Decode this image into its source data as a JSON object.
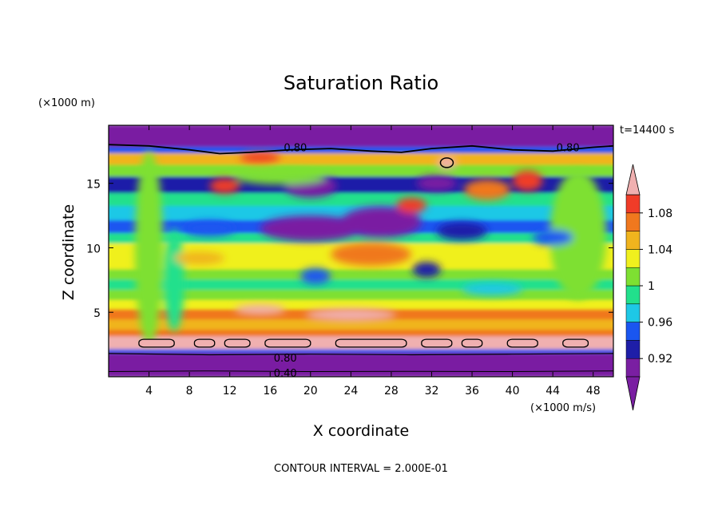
{
  "chart_data": {
    "type": "heatmap",
    "title": "Saturation Ratio",
    "xlabel": "X coordinate",
    "ylabel": "Z coordinate",
    "x_unit": "(×1000 m/s)",
    "y_unit": "(×1000 m)",
    "time_label": "t=14400 s",
    "footer": "CONTOUR INTERVAL = 2.000E-01",
    "xlim": [
      0,
      50
    ],
    "ylim": [
      0,
      19.5
    ],
    "x_ticks": [
      "4",
      "8",
      "12",
      "16",
      "20",
      "24",
      "28",
      "32",
      "36",
      "40",
      "44",
      "48"
    ],
    "y_ticks": [
      "5",
      "10",
      "15"
    ],
    "colorbar": {
      "levels": [
        0.9,
        0.92,
        0.94,
        0.96,
        0.98,
        1.0,
        1.02,
        1.04,
        1.06,
        1.08,
        1.1
      ],
      "labels": [
        "0.92",
        "0.96",
        "1",
        "1.04",
        "1.08"
      ],
      "colors": [
        "#7a1fa2",
        "#1e1ea8",
        "#1a56f0",
        "#1ec8e6",
        "#22e08c",
        "#7ee032",
        "#f0f01e",
        "#f0b41e",
        "#f0781e",
        "#f03c28"
      ],
      "under_color": "#7a1fa2",
      "over_color": "#f0b0b0"
    },
    "contour_labels": [
      {
        "text": "0.80",
        "x": 18.5,
        "y": 17.8
      },
      {
        "text": "0.80",
        "x": 45.5,
        "y": 17.8
      },
      {
        "text": "0.80",
        "x": 17.5,
        "y": 1.5
      },
      {
        "text": "0.40",
        "x": 17.5,
        "y": 0.3
      }
    ],
    "bands": [
      {
        "y0": 0.0,
        "y1": 1.6,
        "value": 0.6
      },
      {
        "y0": 1.6,
        "y1": 1.9,
        "value": 0.85
      },
      {
        "y0": 1.9,
        "y1": 2.2,
        "value": 0.95
      },
      {
        "y0": 2.2,
        "y1": 3.2,
        "value": 1.1
      },
      {
        "y0": 3.2,
        "y1": 3.7,
        "value": 1.07
      },
      {
        "y0": 3.7,
        "y1": 4.5,
        "value": 1.05
      },
      {
        "y0": 4.5,
        "y1": 5.3,
        "value": 1.07
      },
      {
        "y0": 5.3,
        "y1": 6.0,
        "value": 1.03
      },
      {
        "y0": 6.0,
        "y1": 6.8,
        "value": 1.01
      },
      {
        "y0": 6.8,
        "y1": 7.6,
        "value": 0.98
      },
      {
        "y0": 7.6,
        "y1": 8.4,
        "value": 1.01
      },
      {
        "y0": 8.4,
        "y1": 9.2,
        "value": 1.03
      },
      {
        "y0": 9.2,
        "y1": 10.4,
        "value": 1.02
      },
      {
        "y0": 10.4,
        "y1": 11.2,
        "value": 0.99
      },
      {
        "y0": 11.2,
        "y1": 12.2,
        "value": 0.95
      },
      {
        "y0": 12.2,
        "y1": 13.3,
        "value": 0.97
      },
      {
        "y0": 13.3,
        "y1": 14.3,
        "value": 0.99
      },
      {
        "y0": 14.3,
        "y1": 15.6,
        "value": 0.93
      },
      {
        "y0": 15.6,
        "y1": 16.5,
        "value": 1.0
      },
      {
        "y0": 16.5,
        "y1": 17.4,
        "value": 1.05
      },
      {
        "y0": 17.4,
        "y1": 17.9,
        "value": 0.95
      },
      {
        "y0": 17.9,
        "y1": 19.5,
        "value": 0.6
      }
    ],
    "blobs": [
      {
        "cx": 4.0,
        "cy": 10.0,
        "rx": 1.4,
        "ry": 7.5,
        "value": 1.01
      },
      {
        "cx": 46.5,
        "cy": 11.0,
        "rx": 2.8,
        "ry": 5.0,
        "value": 1.0
      },
      {
        "cx": 20.0,
        "cy": 11.5,
        "rx": 5.0,
        "ry": 1.0,
        "value": 0.91
      },
      {
        "cx": 27.0,
        "cy": 12.0,
        "rx": 4.0,
        "ry": 1.2,
        "value": 0.91
      },
      {
        "cx": 35.0,
        "cy": 11.3,
        "rx": 2.5,
        "ry": 0.7,
        "value": 0.93
      },
      {
        "cx": 20.0,
        "cy": 14.8,
        "rx": 2.6,
        "ry": 0.9,
        "value": 0.91
      },
      {
        "cx": 32.5,
        "cy": 15.0,
        "rx": 2.0,
        "ry": 0.6,
        "value": 0.91
      },
      {
        "cx": 26.0,
        "cy": 9.5,
        "rx": 4.0,
        "ry": 0.9,
        "value": 1.07
      },
      {
        "cx": 31.5,
        "cy": 8.3,
        "rx": 1.4,
        "ry": 0.6,
        "value": 0.93
      },
      {
        "cx": 20.5,
        "cy": 7.8,
        "rx": 1.5,
        "ry": 0.6,
        "value": 0.95
      },
      {
        "cx": 17.0,
        "cy": 15.5,
        "rx": 4.5,
        "ry": 0.6,
        "value": 1.0
      },
      {
        "cx": 11.5,
        "cy": 14.8,
        "rx": 1.5,
        "ry": 0.6,
        "value": 1.08
      },
      {
        "cx": 30.0,
        "cy": 13.3,
        "rx": 1.5,
        "ry": 0.6,
        "value": 1.08
      },
      {
        "cx": 37.5,
        "cy": 14.5,
        "rx": 2.3,
        "ry": 0.8,
        "value": 1.07
      },
      {
        "cx": 41.5,
        "cy": 15.2,
        "rx": 1.5,
        "ry": 0.8,
        "value": 1.08
      },
      {
        "cx": 15.0,
        "cy": 17.0,
        "rx": 2.0,
        "ry": 0.4,
        "value": 1.09
      },
      {
        "cx": 33.5,
        "cy": 16.6,
        "rx": 1.0,
        "ry": 0.5,
        "value": 1.12
      },
      {
        "cx": 24.0,
        "cy": 4.8,
        "rx": 4.5,
        "ry": 0.5,
        "value": 1.1
      },
      {
        "cx": 15.0,
        "cy": 5.2,
        "rx": 2.5,
        "ry": 0.4,
        "value": 1.1
      },
      {
        "cx": 6.5,
        "cy": 7.5,
        "rx": 1.0,
        "ry": 4.0,
        "value": 0.99
      },
      {
        "cx": 44.0,
        "cy": 10.8,
        "rx": 2.0,
        "ry": 0.6,
        "value": 0.95
      },
      {
        "cx": 10.0,
        "cy": 11.5,
        "rx": 2.5,
        "ry": 0.6,
        "value": 0.95
      },
      {
        "cx": 38.0,
        "cy": 6.8,
        "rx": 3.0,
        "ry": 0.5,
        "value": 0.97
      },
      {
        "cx": 9.0,
        "cy": 9.2,
        "rx": 2.5,
        "ry": 0.5,
        "value": 1.04
      }
    ],
    "contour_upper": [
      [
        0,
        18.0
      ],
      [
        4,
        17.9
      ],
      [
        8,
        17.6
      ],
      [
        11,
        17.3
      ],
      [
        14,
        17.4
      ],
      [
        18,
        17.6
      ],
      [
        22,
        17.7
      ],
      [
        26,
        17.5
      ],
      [
        29,
        17.4
      ],
      [
        32,
        17.7
      ],
      [
        36,
        17.9
      ],
      [
        40,
        17.6
      ],
      [
        44,
        17.5
      ],
      [
        48,
        17.8
      ],
      [
        50,
        17.9
      ]
    ],
    "contour_lower_a": [
      [
        0,
        1.8
      ],
      [
        10,
        1.7
      ],
      [
        20,
        1.75
      ],
      [
        30,
        1.7
      ],
      [
        40,
        1.75
      ],
      [
        50,
        1.8
      ]
    ],
    "contour_lower_b": [
      [
        0,
        0.4
      ],
      [
        10,
        0.45
      ],
      [
        20,
        0.4
      ],
      [
        30,
        0.42
      ],
      [
        40,
        0.4
      ],
      [
        50,
        0.45
      ]
    ],
    "pink_cells": [
      {
        "x0": 3.0,
        "x1": 6.5
      },
      {
        "x0": 8.5,
        "x1": 10.5
      },
      {
        "x0": 11.5,
        "x1": 14.0
      },
      {
        "x0": 15.5,
        "x1": 20.0
      },
      {
        "x0": 22.5,
        "x1": 29.5
      },
      {
        "x0": 31.0,
        "x1": 34.0
      },
      {
        "x0": 35.0,
        "x1": 37.0
      },
      {
        "x0": 39.5,
        "x1": 42.5
      },
      {
        "x0": 45.0,
        "x1": 47.5
      }
    ]
  }
}
